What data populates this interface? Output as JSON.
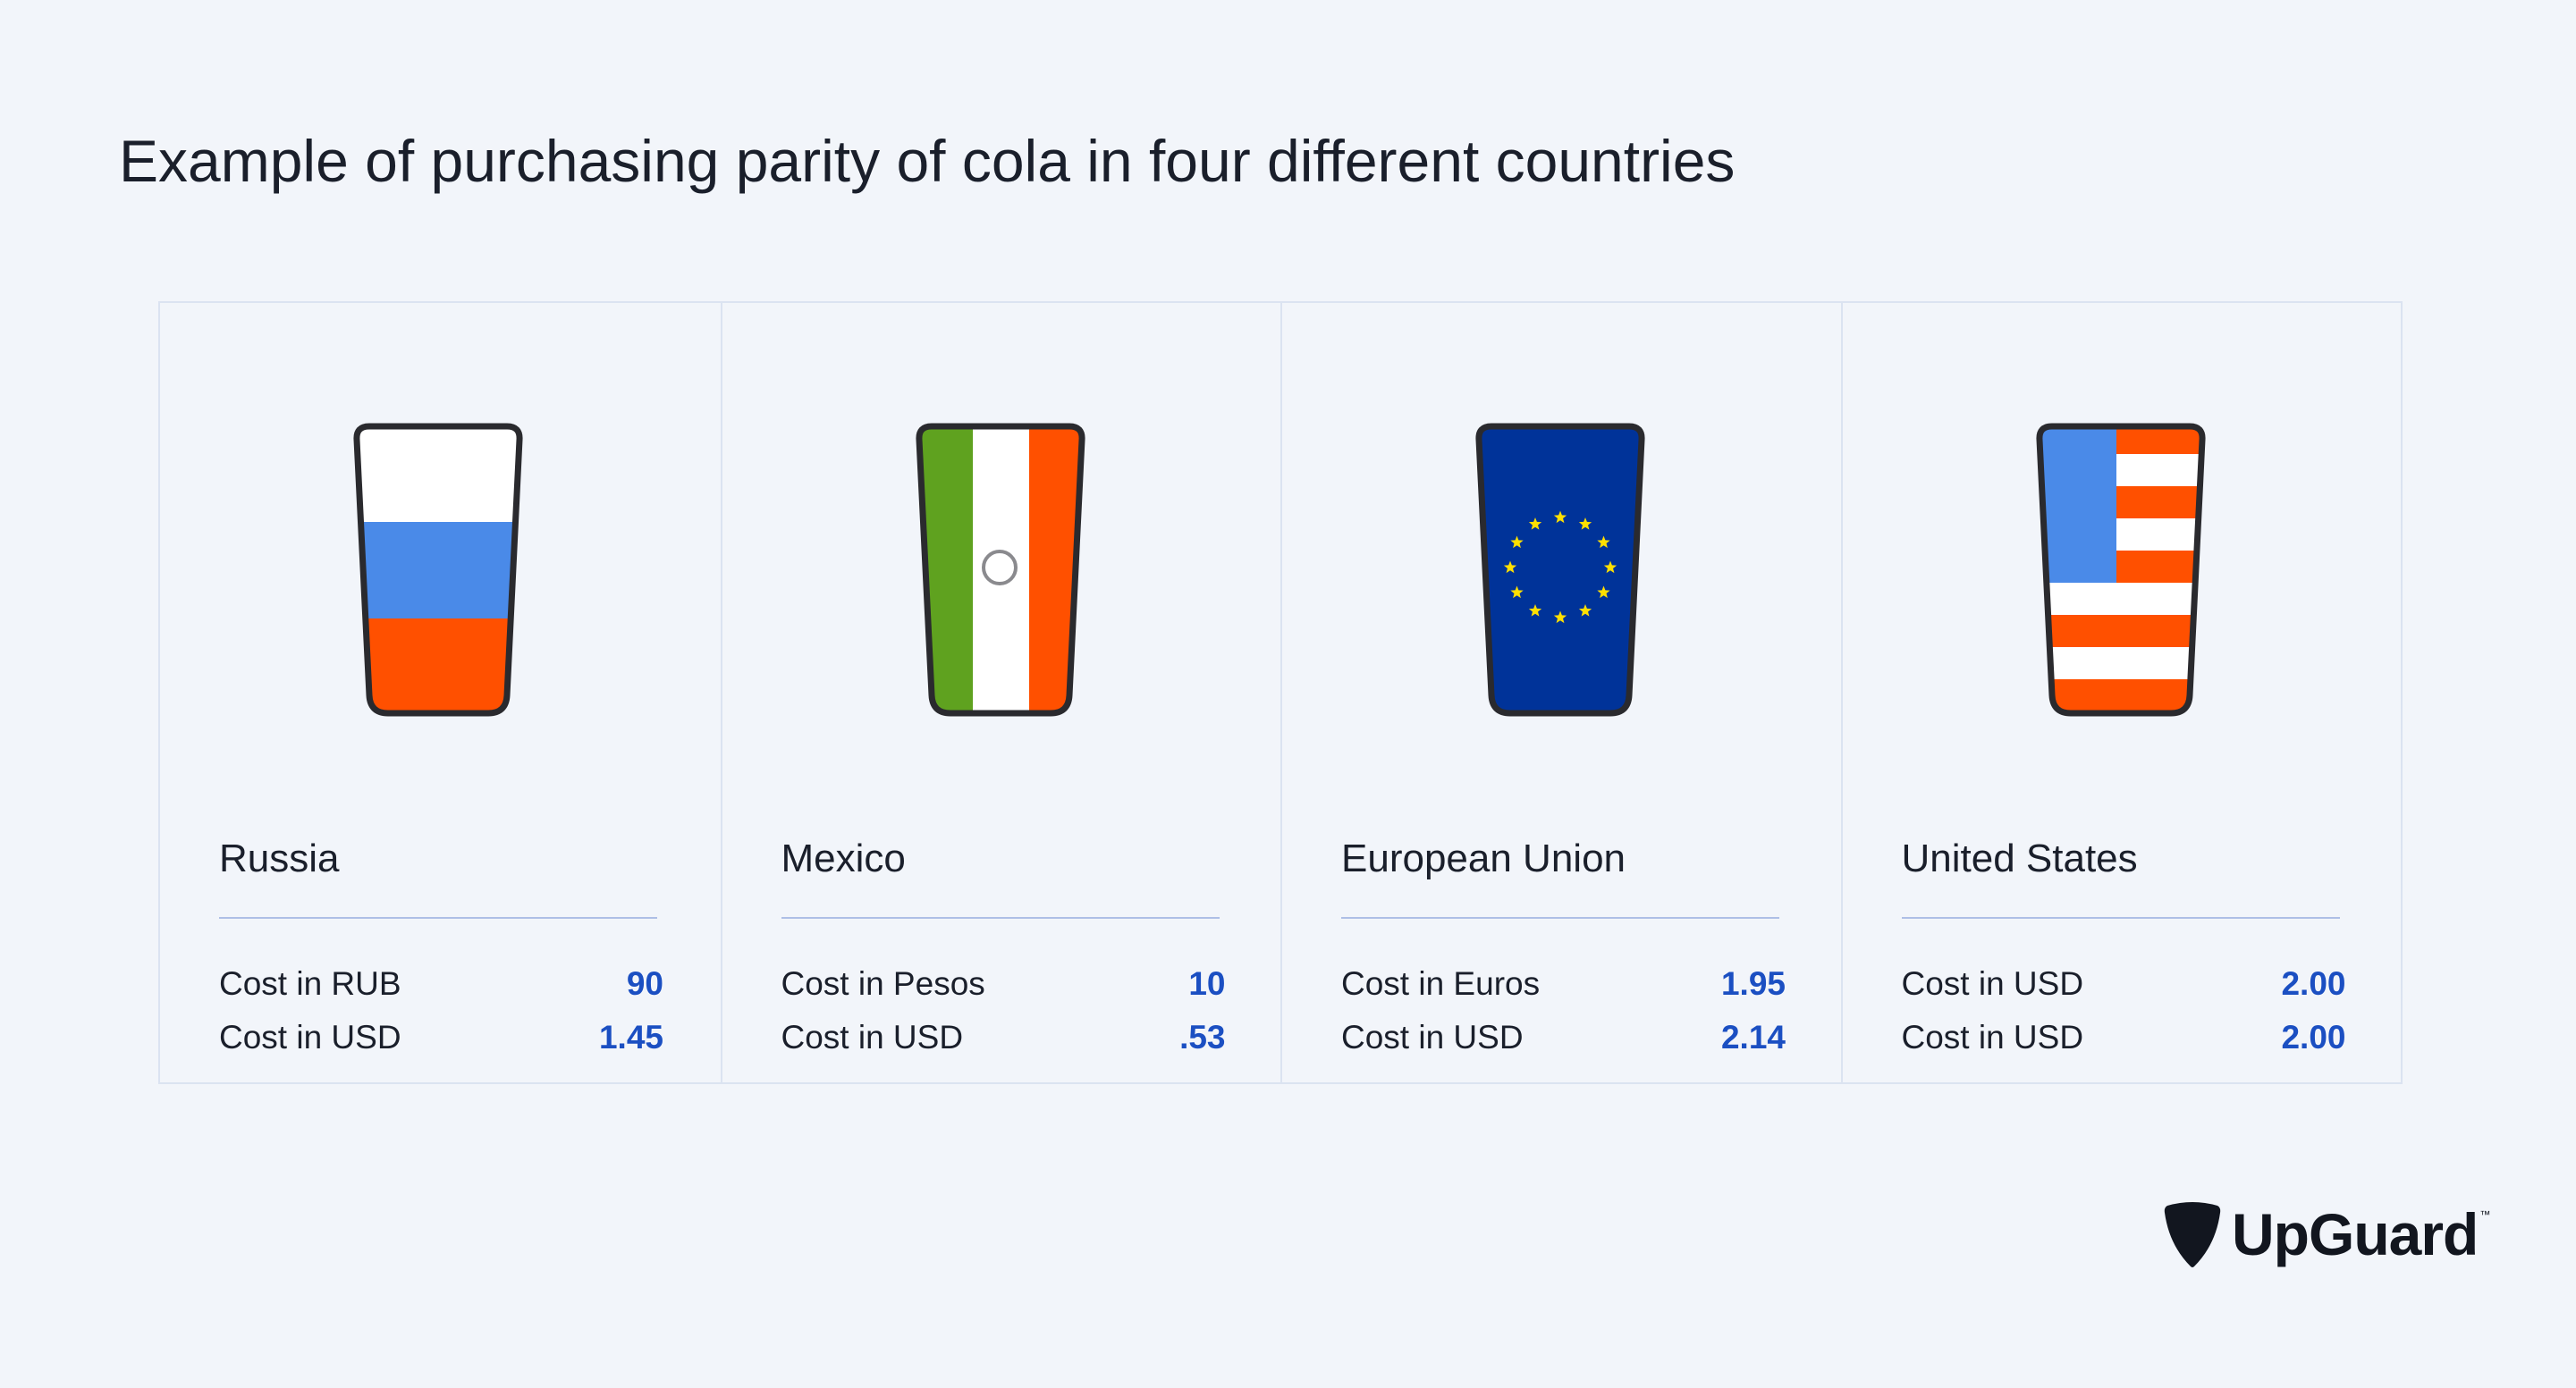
{
  "title": "Example of purchasing parity of cola in four different countries",
  "countries": [
    {
      "name": "Russia",
      "flag_icon": "russia-flag-cup-icon",
      "rows": [
        {
          "label": "Cost in RUB",
          "value": "90"
        },
        {
          "label": "Cost in USD",
          "value": "1.45"
        }
      ]
    },
    {
      "name": "Mexico",
      "flag_icon": "mexico-flag-cup-icon",
      "rows": [
        {
          "label": "Cost in Pesos",
          "value": "10"
        },
        {
          "label": "Cost in USD",
          "value": ".53"
        }
      ]
    },
    {
      "name": "European Union",
      "flag_icon": "eu-flag-cup-icon",
      "rows": [
        {
          "label": "Cost in Euros",
          "value": "1.95"
        },
        {
          "label": "Cost in USD",
          "value": "2.14"
        }
      ]
    },
    {
      "name": "United States",
      "flag_icon": "us-flag-cup-icon",
      "rows": [
        {
          "label": "Cost in USD",
          "value": "2.00"
        },
        {
          "label": "Cost in USD",
          "value": "2.00"
        }
      ]
    }
  ],
  "logo": {
    "text": "UpGuard",
    "tm": "™",
    "icon": "upguard-shield-icon"
  },
  "colors": {
    "background": "#f2f5fa",
    "accent_value": "#1b4fc2",
    "divider": "#aebfe6",
    "flag_white": "#ffffff",
    "flag_blue": "#4a8ae8",
    "flag_red": "#ff5000",
    "flag_green": "#5fa21f",
    "eu_blue": "#003399",
    "eu_star": "#ffe000"
  }
}
